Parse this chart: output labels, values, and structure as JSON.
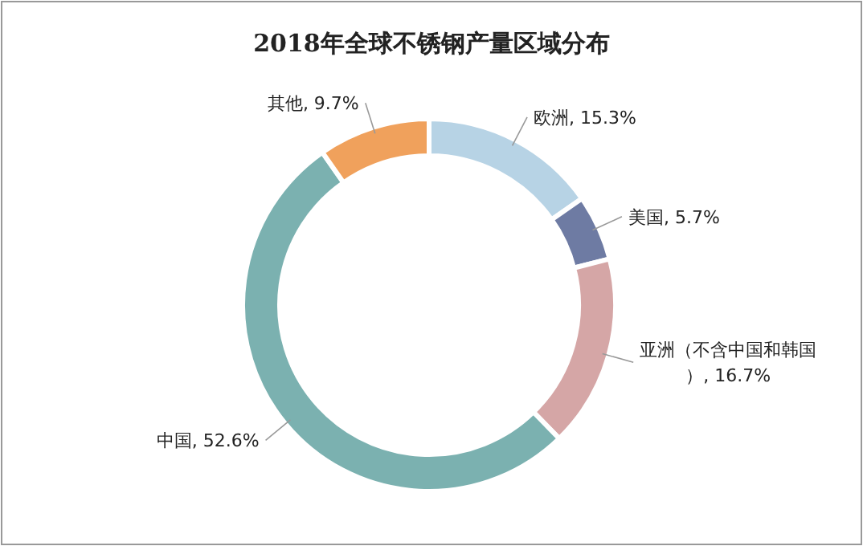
{
  "chart_data": {
    "type": "donut",
    "title": "2018年全球不锈钢产量区域分布",
    "categories": [
      "欧洲",
      "美国",
      "亚洲（不含中国和韩国）",
      "中国",
      "其他"
    ],
    "values": [
      15.3,
      5.7,
      16.7,
      52.6,
      9.7
    ],
    "value_labels": [
      "15.3%",
      "5.7%",
      "16.7%",
      "52.6%",
      "9.7%"
    ],
    "colors": [
      "#b7d3e5",
      "#6e7ba3",
      "#d5a6a6",
      "#7bb1b0",
      "#f0a15c"
    ]
  }
}
